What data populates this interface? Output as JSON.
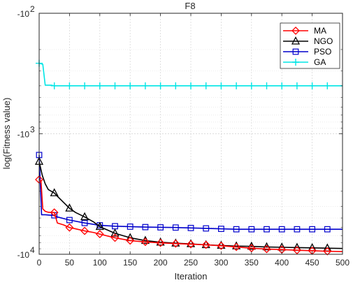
{
  "chart_data": {
    "type": "line",
    "title": "F8",
    "xlabel": "Iteration",
    "ylabel": "log(Fitness value)",
    "xlim": [
      0,
      500
    ],
    "xticks": [
      0,
      50,
      100,
      150,
      200,
      250,
      300,
      350,
      400,
      450,
      500
    ],
    "y_scale": "log-negative",
    "ylim_magnitude": [
      100,
      10000
    ],
    "yticks": [
      {
        "base": "-10",
        "exp": "2",
        "magnitude": 100
      },
      {
        "base": "-10",
        "exp": "3",
        "magnitude": 1000
      },
      {
        "base": "-10",
        "exp": "4",
        "magnitude": 10000
      }
    ],
    "grid": true,
    "legend_position": "top-right",
    "series": [
      {
        "name": "MA",
        "color": "#ff0000",
        "marker": "diamond",
        "points": [
          [
            0,
            2400
          ],
          [
            3,
            2450
          ],
          [
            6,
            4200
          ],
          [
            10,
            4400
          ],
          [
            15,
            4480
          ],
          [
            20,
            4500
          ],
          [
            25,
            4500
          ],
          [
            30,
            5500
          ],
          [
            40,
            5700
          ],
          [
            50,
            6000
          ],
          [
            60,
            6150
          ],
          [
            75,
            6400
          ],
          [
            90,
            6600
          ],
          [
            100,
            6800
          ],
          [
            125,
            7300
          ],
          [
            150,
            7700
          ],
          [
            175,
            7900
          ],
          [
            200,
            8050
          ],
          [
            225,
            8150
          ],
          [
            250,
            8250
          ],
          [
            275,
            8350
          ],
          [
            300,
            8500
          ],
          [
            325,
            8700
          ],
          [
            350,
            8900
          ],
          [
            375,
            9050
          ],
          [
            400,
            9150
          ],
          [
            425,
            9250
          ],
          [
            450,
            9350
          ],
          [
            475,
            9450
          ],
          [
            500,
            9500
          ]
        ],
        "marker_every": [
          0,
          25,
          50,
          75,
          100,
          125,
          150,
          175,
          200,
          225,
          250,
          275,
          300,
          325,
          350,
          375,
          400,
          425,
          450,
          475
        ]
      },
      {
        "name": "NGO",
        "color": "#000000",
        "marker": "triangle",
        "points": [
          [
            0,
            1700
          ],
          [
            5,
            2200
          ],
          [
            10,
            2600
          ],
          [
            15,
            2900
          ],
          [
            20,
            3000
          ],
          [
            25,
            3100
          ],
          [
            30,
            3300
          ],
          [
            40,
            3700
          ],
          [
            50,
            4150
          ],
          [
            60,
            4500
          ],
          [
            75,
            4900
          ],
          [
            90,
            5400
          ],
          [
            100,
            5900
          ],
          [
            125,
            6700
          ],
          [
            150,
            7300
          ],
          [
            175,
            7700
          ],
          [
            200,
            7950
          ],
          [
            225,
            8100
          ],
          [
            250,
            8200
          ],
          [
            275,
            8350
          ],
          [
            300,
            8450
          ],
          [
            325,
            8550
          ],
          [
            350,
            8600
          ],
          [
            375,
            8700
          ],
          [
            400,
            8750
          ],
          [
            425,
            8800
          ],
          [
            450,
            8850
          ],
          [
            475,
            8900
          ],
          [
            500,
            8950
          ]
        ],
        "marker_every": [
          0,
          25,
          50,
          75,
          100,
          125,
          150,
          175,
          200,
          225,
          250,
          275,
          300,
          325,
          350,
          375,
          400,
          425,
          450,
          475
        ]
      },
      {
        "name": "PSO",
        "color": "#0000cc",
        "marker": "square",
        "points": [
          [
            0,
            1500
          ],
          [
            4,
            4700
          ],
          [
            10,
            4700
          ],
          [
            20,
            4750
          ],
          [
            25,
            4750
          ],
          [
            30,
            4900
          ],
          [
            50,
            5200
          ],
          [
            75,
            5500
          ],
          [
            100,
            5750
          ],
          [
            125,
            5850
          ],
          [
            150,
            5900
          ],
          [
            175,
            5950
          ],
          [
            200,
            5980
          ],
          [
            225,
            6000
          ],
          [
            250,
            6050
          ],
          [
            275,
            6100
          ],
          [
            300,
            6150
          ],
          [
            325,
            6200
          ],
          [
            350,
            6200
          ],
          [
            375,
            6200
          ],
          [
            400,
            6200
          ],
          [
            425,
            6200
          ],
          [
            450,
            6200
          ],
          [
            475,
            6200
          ],
          [
            500,
            6200
          ]
        ],
        "marker_every": [
          0,
          25,
          50,
          75,
          100,
          125,
          150,
          175,
          200,
          225,
          250,
          275,
          300,
          325,
          350,
          375,
          400,
          425,
          450,
          475
        ]
      },
      {
        "name": "GA",
        "color": "#00e5e5",
        "marker": "plus",
        "points": [
          [
            0,
            260
          ],
          [
            6,
            265
          ],
          [
            10,
            395
          ],
          [
            20,
            395
          ],
          [
            25,
            400
          ],
          [
            50,
            400
          ],
          [
            75,
            400
          ],
          [
            100,
            400
          ],
          [
            125,
            400
          ],
          [
            150,
            400
          ],
          [
            175,
            400
          ],
          [
            200,
            400
          ],
          [
            225,
            400
          ],
          [
            250,
            400
          ],
          [
            275,
            400
          ],
          [
            300,
            400
          ],
          [
            325,
            400
          ],
          [
            350,
            400
          ],
          [
            375,
            400
          ],
          [
            400,
            400
          ],
          [
            425,
            400
          ],
          [
            450,
            400
          ],
          [
            475,
            400
          ],
          [
            500,
            400
          ]
        ],
        "marker_every": [
          0,
          25,
          50,
          75,
          100,
          125,
          150,
          175,
          200,
          225,
          250,
          275,
          300,
          325,
          350,
          375,
          400,
          425,
          450,
          475
        ]
      }
    ]
  }
}
